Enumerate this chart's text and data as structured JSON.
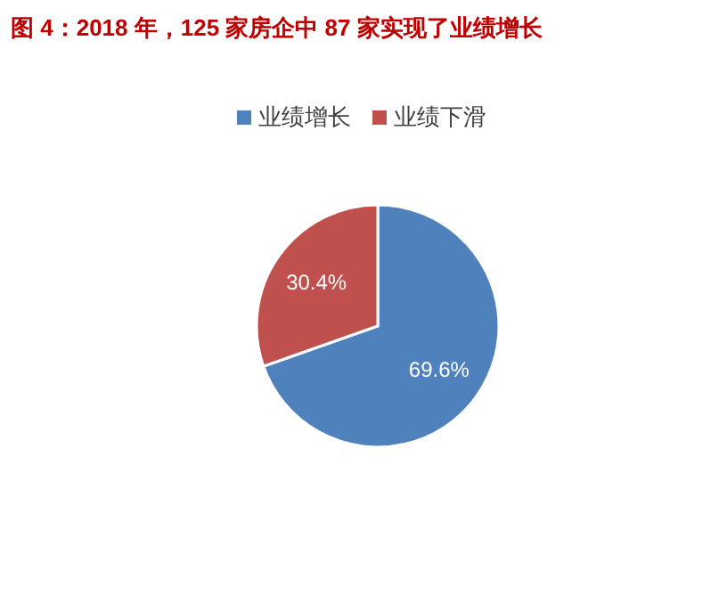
{
  "chart_data": {
    "type": "pie",
    "title": "图 4：2018 年，125 家房企中 87 家实现了业绩增长",
    "categories": [
      "业绩增长",
      "业绩下滑"
    ],
    "values": [
      69.6,
      30.4
    ],
    "colors": [
      "#4f81bd",
      "#c0504d"
    ],
    "legend": "top",
    "value_labels": [
      "69.6%",
      "30.4%"
    ]
  }
}
